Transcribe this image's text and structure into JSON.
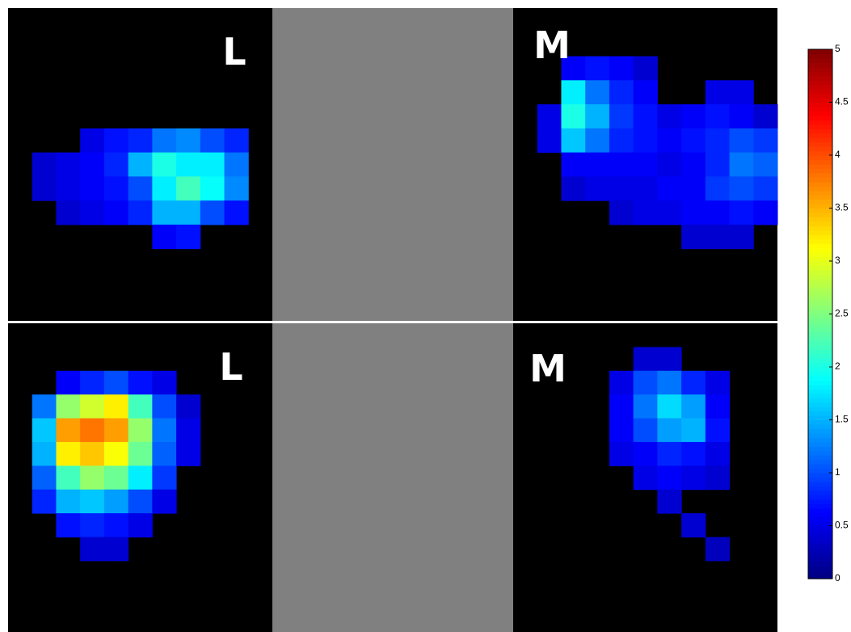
{
  "chart_data": [
    {
      "type": "heatmap",
      "label": "L",
      "values": [
        [
          null,
          null,
          null,
          null,
          null,
          null,
          null,
          null,
          null,
          null,
          null
        ],
        [
          null,
          null,
          null,
          null,
          null,
          null,
          null,
          null,
          null,
          null,
          null
        ],
        [
          null,
          null,
          null,
          null,
          null,
          null,
          null,
          null,
          null,
          null,
          null
        ],
        [
          null,
          null,
          null,
          null,
          null,
          null,
          null,
          null,
          null,
          null,
          null
        ],
        [
          null,
          null,
          null,
          null,
          null,
          null,
          null,
          null,
          null,
          null,
          null
        ],
        [
          null,
          null,
          null,
          0.5,
          0.7,
          0.8,
          1.2,
          1.3,
          1.0,
          0.8,
          null
        ],
        [
          null,
          0.4,
          0.5,
          0.6,
          0.8,
          1.5,
          2.0,
          1.8,
          1.8,
          1.2,
          null
        ],
        [
          null,
          0.4,
          0.5,
          0.6,
          0.7,
          1.0,
          1.8,
          2.2,
          1.9,
          1.3,
          null
        ],
        [
          null,
          null,
          0.4,
          0.5,
          0.6,
          0.8,
          1.5,
          1.5,
          1.0,
          0.7,
          null
        ],
        [
          null,
          null,
          null,
          null,
          null,
          null,
          0.6,
          0.7,
          null,
          null,
          null
        ],
        [
          null,
          null,
          null,
          null,
          null,
          null,
          null,
          null,
          null,
          null,
          null
        ],
        [
          null,
          null,
          null,
          null,
          null,
          null,
          null,
          null,
          null,
          null,
          null
        ],
        [
          null,
          null,
          null,
          null,
          null,
          null,
          null,
          null,
          null,
          null,
          null
        ]
      ]
    },
    {
      "type": "heatmap",
      "label": "M",
      "values": [
        [
          null,
          null,
          null,
          null,
          null,
          null,
          null,
          null,
          null,
          null,
          null
        ],
        [
          null,
          null,
          null,
          null,
          null,
          null,
          null,
          null,
          null,
          null,
          null
        ],
        [
          null,
          null,
          0.6,
          0.7,
          0.6,
          0.4,
          null,
          null,
          null,
          null,
          null
        ],
        [
          null,
          null,
          1.8,
          1.2,
          0.8,
          0.6,
          null,
          null,
          0.5,
          0.5,
          null
        ],
        [
          null,
          0.5,
          2.0,
          1.5,
          0.9,
          0.7,
          0.5,
          0.6,
          0.7,
          0.6,
          0.4
        ],
        [
          null,
          0.5,
          1.6,
          1.2,
          0.8,
          0.7,
          0.6,
          0.7,
          0.8,
          1.0,
          0.9
        ],
        [
          null,
          null,
          0.6,
          0.6,
          0.6,
          0.6,
          0.5,
          0.6,
          0.8,
          1.2,
          1.1
        ],
        [
          null,
          null,
          0.4,
          0.5,
          0.5,
          0.5,
          0.6,
          0.6,
          0.9,
          1.0,
          0.9
        ],
        [
          null,
          null,
          null,
          null,
          0.4,
          0.5,
          0.5,
          0.6,
          0.6,
          0.7,
          0.6
        ],
        [
          null,
          null,
          null,
          null,
          null,
          null,
          null,
          0.4,
          0.4,
          0.4,
          null
        ],
        [
          null,
          null,
          null,
          null,
          null,
          null,
          null,
          null,
          null,
          null,
          null
        ],
        [
          null,
          null,
          null,
          null,
          null,
          null,
          null,
          null,
          null,
          null,
          null
        ],
        [
          null,
          null,
          null,
          null,
          null,
          null,
          null,
          null,
          null,
          null,
          null
        ]
      ]
    },
    {
      "type": "heatmap",
      "label": "L",
      "values": [
        [
          null,
          null,
          null,
          null,
          null,
          null,
          null,
          null,
          null,
          null,
          null
        ],
        [
          null,
          null,
          null,
          null,
          null,
          null,
          null,
          null,
          null,
          null,
          null
        ],
        [
          null,
          null,
          0.6,
          0.8,
          1.0,
          0.7,
          0.5,
          null,
          null,
          null,
          null
        ],
        [
          null,
          1.2,
          2.6,
          2.9,
          3.2,
          2.2,
          1.0,
          0.4,
          null,
          null,
          null
        ],
        [
          null,
          1.6,
          3.6,
          3.8,
          3.6,
          2.6,
          1.2,
          0.5,
          null,
          null,
          null
        ],
        [
          null,
          1.5,
          3.2,
          3.4,
          3.1,
          2.4,
          1.1,
          0.5,
          null,
          null,
          null
        ],
        [
          null,
          1.1,
          2.2,
          2.6,
          2.4,
          1.8,
          0.9,
          null,
          null,
          null,
          null
        ],
        [
          null,
          0.8,
          1.5,
          1.6,
          1.4,
          1.0,
          0.5,
          null,
          null,
          null,
          null
        ],
        [
          null,
          null,
          0.7,
          0.8,
          0.7,
          0.5,
          null,
          null,
          null,
          null,
          null
        ],
        [
          null,
          null,
          null,
          0.4,
          0.4,
          null,
          null,
          null,
          null,
          null,
          null
        ],
        [
          null,
          null,
          null,
          null,
          null,
          null,
          null,
          null,
          null,
          null,
          null
        ],
        [
          null,
          null,
          null,
          null,
          null,
          null,
          null,
          null,
          null,
          null,
          null
        ],
        [
          null,
          null,
          null,
          null,
          null,
          null,
          null,
          null,
          null,
          null,
          null
        ]
      ]
    },
    {
      "type": "heatmap",
      "label": "M",
      "values": [
        [
          null,
          null,
          null,
          null,
          null,
          null,
          null,
          null,
          null,
          null,
          null
        ],
        [
          null,
          null,
          null,
          null,
          null,
          0.4,
          0.4,
          null,
          null,
          null,
          null
        ],
        [
          null,
          null,
          null,
          null,
          0.5,
          1.0,
          1.2,
          0.8,
          0.5,
          null,
          null
        ],
        [
          null,
          null,
          null,
          null,
          0.6,
          1.2,
          1.7,
          1.4,
          0.6,
          null,
          null
        ],
        [
          null,
          null,
          null,
          null,
          0.6,
          1.0,
          1.4,
          1.5,
          0.7,
          null,
          null
        ],
        [
          null,
          null,
          null,
          null,
          0.5,
          0.6,
          0.8,
          0.7,
          0.5,
          null,
          null
        ],
        [
          null,
          null,
          null,
          null,
          null,
          0.5,
          0.6,
          0.5,
          0.4,
          null,
          null
        ],
        [
          null,
          null,
          null,
          null,
          null,
          null,
          0.4,
          null,
          null,
          null,
          null
        ],
        [
          null,
          null,
          null,
          null,
          null,
          null,
          null,
          0.4,
          null,
          null,
          null
        ],
        [
          null,
          null,
          null,
          null,
          null,
          null,
          null,
          null,
          0.3,
          null,
          null
        ],
        [
          null,
          null,
          null,
          null,
          null,
          null,
          null,
          null,
          null,
          null,
          null
        ],
        [
          null,
          null,
          null,
          null,
          null,
          null,
          null,
          null,
          null,
          null,
          null
        ],
        [
          null,
          null,
          null,
          null,
          null,
          null,
          null,
          null,
          null,
          null,
          null
        ]
      ]
    }
  ],
  "colorbar": {
    "clim": [
      0,
      5
    ],
    "ticks": [
      0,
      0.5,
      1,
      1.5,
      2,
      2.5,
      3,
      3.5,
      4,
      4.5,
      5
    ]
  }
}
